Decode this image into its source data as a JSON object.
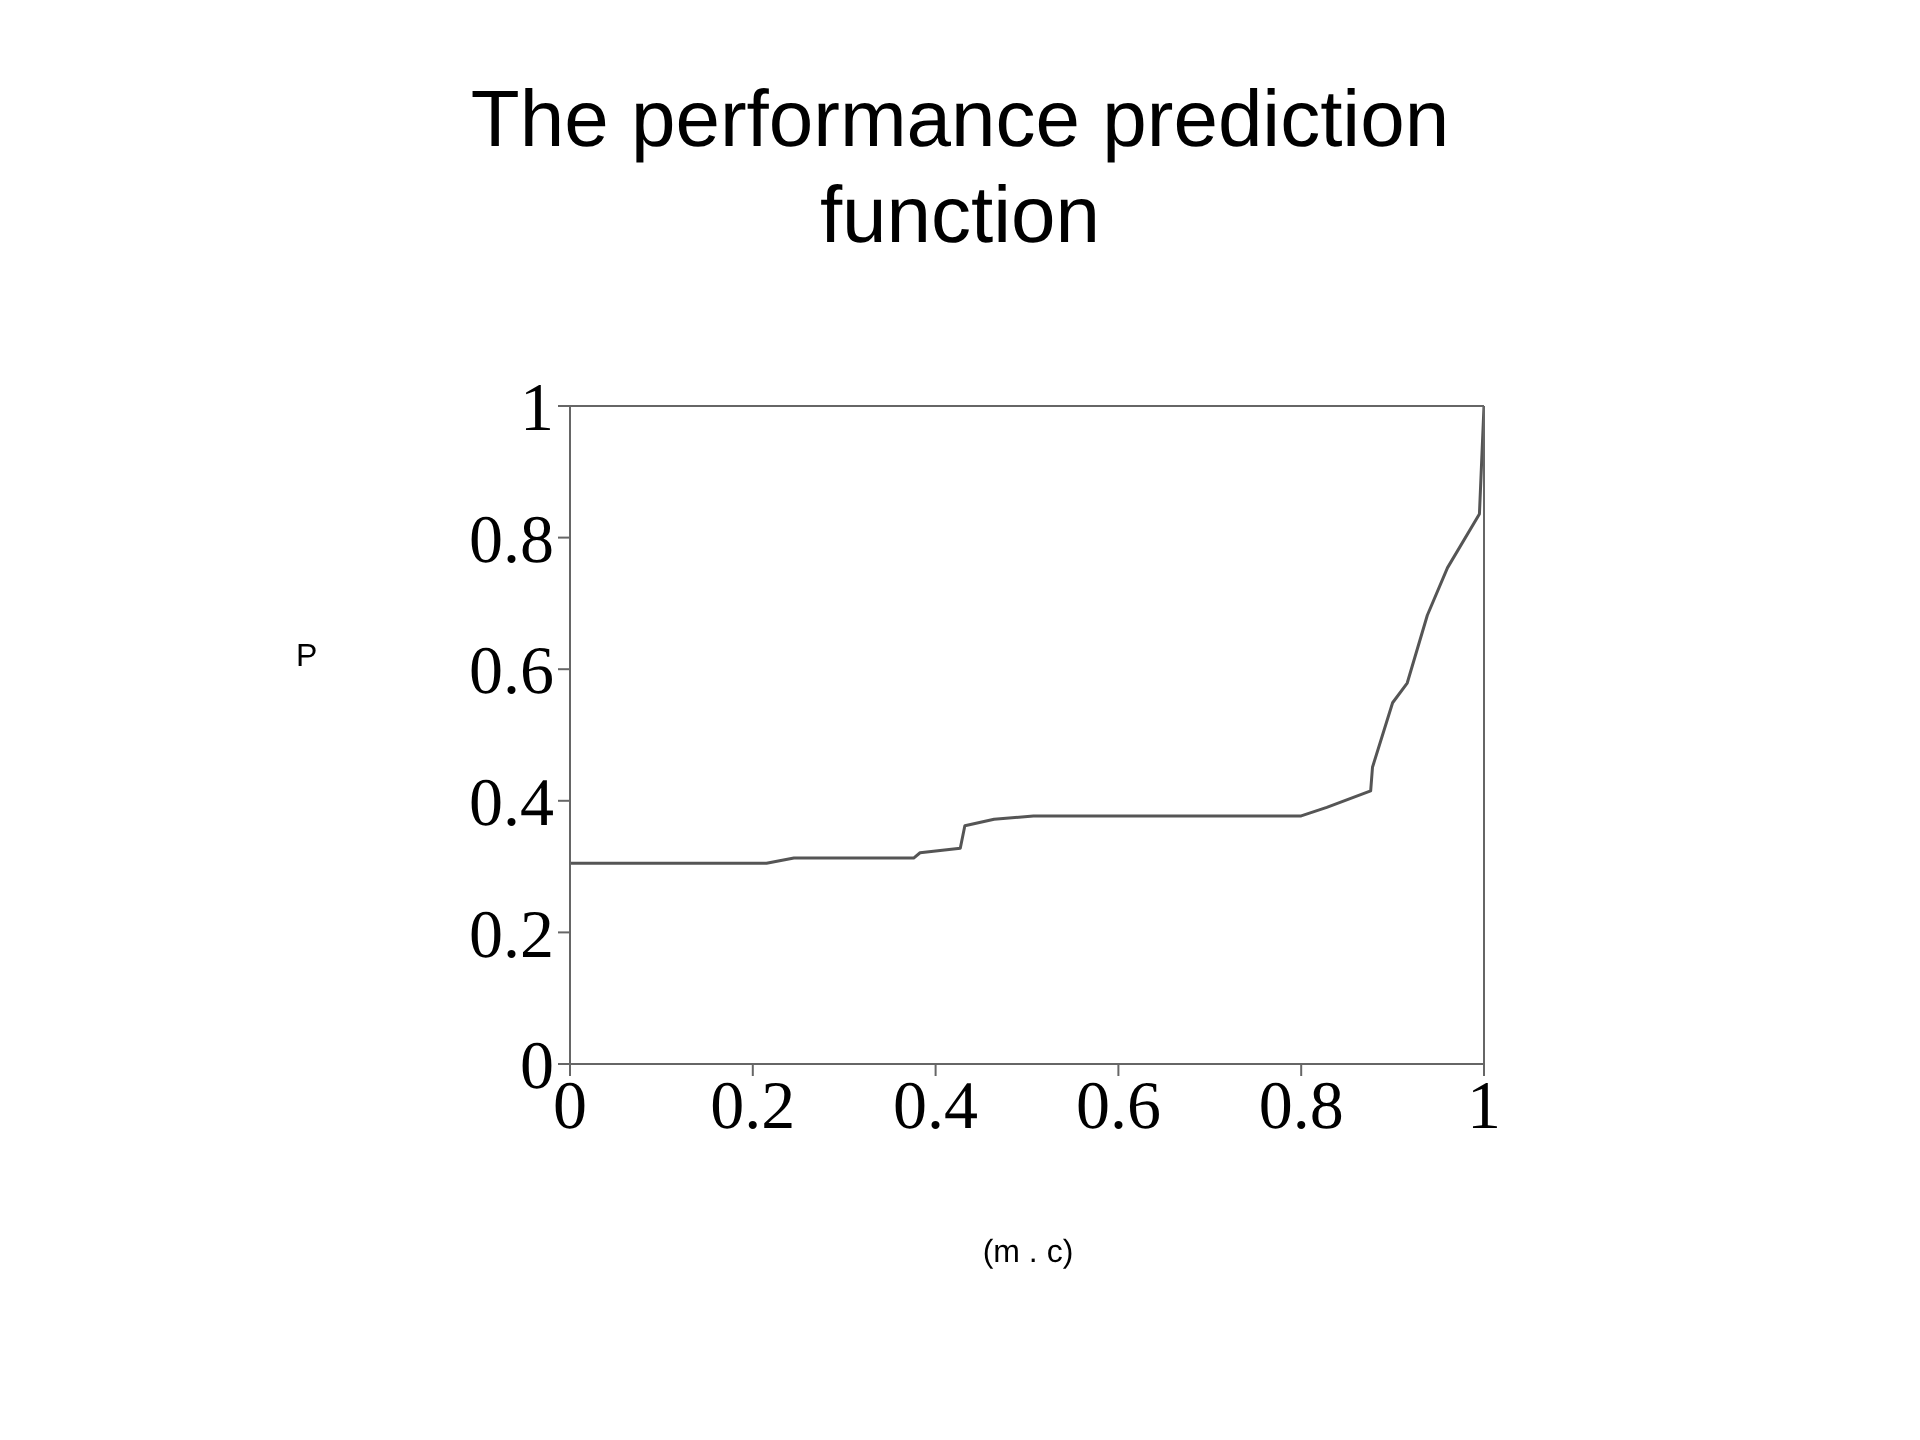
{
  "chart_data": {
    "type": "line",
    "title": "The performance prediction function",
    "xlabel": "(m . c)",
    "ylabel": "P",
    "x": [
      0,
      0.215,
      0.245,
      0.376,
      0.383,
      0.427,
      0.432,
      0.464,
      0.507,
      0.8,
      0.828,
      0.876,
      0.878,
      0.9,
      0.916,
      0.938,
      0.96,
      0.995,
      1.0
    ],
    "series": [
      {
        "color": "#555555",
        "values": [
          0.305,
          0.305,
          0.313,
          0.313,
          0.321,
          0.328,
          0.362,
          0.372,
          0.377,
          0.377,
          0.39,
          0.415,
          0.451,
          0.549,
          0.579,
          0.682,
          0.754,
          0.836,
          1.0
        ]
      }
    ],
    "xlim": [
      0,
      1
    ],
    "ylim": [
      0,
      1
    ],
    "xticks": [
      0,
      0.2,
      0.4,
      0.6,
      0.8,
      1
    ],
    "yticks": [
      0,
      0.2,
      0.4,
      0.6,
      0.8,
      1
    ],
    "grid": false,
    "marker": "none",
    "line_style": "solid"
  }
}
